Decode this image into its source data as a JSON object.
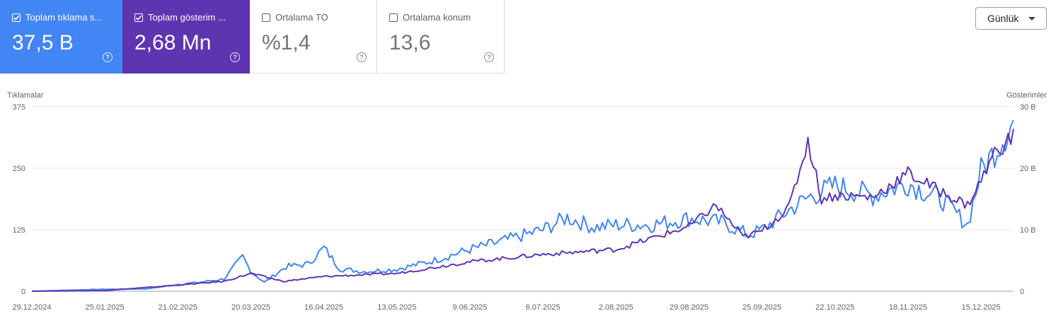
{
  "cards": [
    {
      "label": "Toplam tıklama s...",
      "value": "37,5 B",
      "checked": true
    },
    {
      "label": "Toplam gösterim ...",
      "value": "2,68 Mn",
      "checked": true
    },
    {
      "label": "Ortalama TO",
      "value": "%1,4",
      "checked": false
    },
    {
      "label": "Ortalama konum",
      "value": "13,6",
      "checked": false
    }
  ],
  "help_symbol": "?",
  "granularity": {
    "selected": "Günlük"
  },
  "chart_data": {
    "type": "line",
    "left_axis": {
      "label": "Tıklamalar",
      "min": 0,
      "max": 375,
      "ticks": [
        "0",
        "125",
        "250",
        "375"
      ]
    },
    "right_axis": {
      "label": "Gösterimler",
      "min": 0,
      "max": 30000,
      "ticks": [
        "0",
        "10 B",
        "20 B",
        "30 B"
      ]
    },
    "x_ticks": [
      "29.12.2024",
      "25.01.2025",
      "21.02.2025",
      "20.03.2025",
      "16.04.2025",
      "13.05.2025",
      "9.06.2025",
      "6.07.2025",
      "2.08.2025",
      "29.08.2025",
      "25.09.2025",
      "22.10.2025",
      "18.11.2025",
      "15.12.2025"
    ],
    "x_range": [
      "29.12.2024",
      "27.12.2025"
    ],
    "grid": true,
    "series": [
      {
        "axis": "left",
        "color": "#4285f4",
        "points": [
          [
            "29.12.2024",
            0
          ],
          [
            "10.01.2025",
            2
          ],
          [
            "25.01.2025",
            4
          ],
          [
            "10.02.2025",
            5
          ],
          [
            "21.02.2025",
            14
          ],
          [
            "1.03.2025",
            18
          ],
          [
            "10.03.2025",
            25
          ],
          [
            "17.03.2025",
            70
          ],
          [
            "20.03.2025",
            40
          ],
          [
            "25.03.2025",
            18
          ],
          [
            "2.04.2025",
            50
          ],
          [
            "10.04.2025",
            55
          ],
          [
            "16.04.2025",
            88
          ],
          [
            "22.04.2025",
            45
          ],
          [
            "1.05.2025",
            40
          ],
          [
            "13.05.2025",
            45
          ],
          [
            "25.05.2025",
            60
          ],
          [
            "9.06.2025",
            85
          ],
          [
            "20.06.2025",
            100
          ],
          [
            "6.07.2025",
            125
          ],
          [
            "15.07.2025",
            150
          ],
          [
            "25.07.2025",
            130
          ],
          [
            "2.08.2025",
            135
          ],
          [
            "15.08.2025",
            135
          ],
          [
            "29.08.2025",
            148
          ],
          [
            "10.09.2025",
            140
          ],
          [
            "20.09.2025",
            115
          ],
          [
            "25.09.2025",
            125
          ],
          [
            "5.10.2025",
            165
          ],
          [
            "12.10.2025",
            190
          ],
          [
            "22.10.2025",
            215
          ],
          [
            "5.11.2025",
            195
          ],
          [
            "18.11.2025",
            220
          ],
          [
            "1.12.2025",
            185
          ],
          [
            "10.12.2025",
            135
          ],
          [
            "15.12.2025",
            245
          ],
          [
            "20.12.2025",
            285
          ],
          [
            "27.12.2025",
            345
          ]
        ]
      },
      {
        "axis": "right",
        "color": "#5e35b1",
        "points": [
          [
            "29.12.2024",
            0
          ],
          [
            "25.01.2025",
            100
          ],
          [
            "21.02.2025",
            1000
          ],
          [
            "10.03.2025",
            1600
          ],
          [
            "20.03.2025",
            2900
          ],
          [
            "1.04.2025",
            1600
          ],
          [
            "16.04.2025",
            2400
          ],
          [
            "13.05.2025",
            2900
          ],
          [
            "9.06.2025",
            4800
          ],
          [
            "6.07.2025",
            6000
          ],
          [
            "2.08.2025",
            6800
          ],
          [
            "29.08.2025",
            10500
          ],
          [
            "8.09.2025",
            14000
          ],
          [
            "18.09.2025",
            8800
          ],
          [
            "25.09.2025",
            9800
          ],
          [
            "5.10.2025",
            13600
          ],
          [
            "12.10.2025",
            24500
          ],
          [
            "17.10.2025",
            15000
          ],
          [
            "22.10.2025",
            15600
          ],
          [
            "5.11.2025",
            15300
          ],
          [
            "18.11.2025",
            19200
          ],
          [
            "1.12.2025",
            16000
          ],
          [
            "10.12.2025",
            14000
          ],
          [
            "15.12.2025",
            18000
          ],
          [
            "20.12.2025",
            22500
          ],
          [
            "27.12.2025",
            25200
          ]
        ]
      }
    ]
  }
}
